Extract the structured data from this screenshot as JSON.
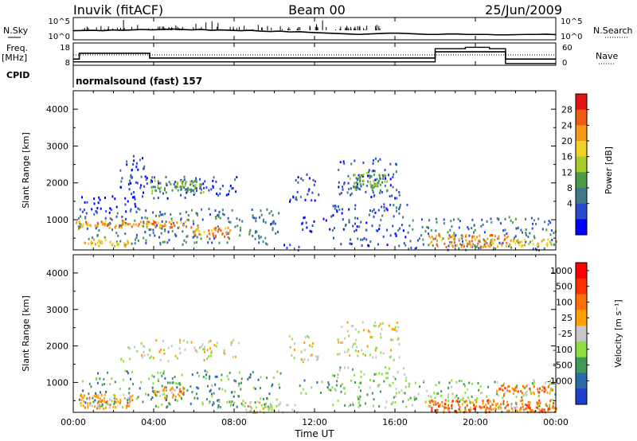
{
  "header": {
    "station": "Inuvik (fitACF)",
    "beam": "Beam 00",
    "date": "25/Jun/2009"
  },
  "noise_panel": {
    "left_label": "N.Sky",
    "left_ticks": [
      "10^5",
      "10^0"
    ],
    "right_label": "N.Search",
    "right_ticks": [
      "10^5",
      "10^0"
    ],
    "sky_level": [
      2.2,
      2.25,
      2.3,
      2.2,
      2.4,
      2.3,
      2.4,
      2.5,
      2.4,
      2.5,
      2.6,
      2.5,
      2.4,
      2.5,
      2.3,
      2.4,
      2.3,
      2.2,
      2.3,
      2.1,
      2.0,
      2.1,
      1.9,
      1.95,
      1.8,
      1.7,
      1.6,
      1.5,
      1.4,
      1.3,
      1.4,
      1.5,
      1.6,
      1.6,
      1.5,
      1.4,
      1.3,
      1.3,
      1.4,
      1.4,
      1.3,
      1.3,
      1.3,
      1.2,
      1.2,
      1.25,
      1.3,
      1.3,
      1.35,
      1.25
    ],
    "spikes": [
      {
        "t": 2.5,
        "v": 4.8
      },
      {
        "t": 3.2,
        "v": 3.6
      },
      {
        "t": 4.5,
        "v": 3.2
      },
      {
        "t": 5.1,
        "v": 3.5
      },
      {
        "t": 6.1,
        "v": 3.9
      },
      {
        "t": 6.6,
        "v": 4.2
      },
      {
        "t": 6.9,
        "v": 4.5
      },
      {
        "t": 7.2,
        "v": 4.1
      },
      {
        "t": 8.5,
        "v": 3.4
      },
      {
        "t": 9.2,
        "v": 3.6
      },
      {
        "t": 10.3,
        "v": 3.3
      },
      {
        "t": 11.2,
        "v": 3.1
      },
      {
        "t": 12.1,
        "v": 3.8
      },
      {
        "t": 12.4,
        "v": 4.7
      },
      {
        "t": 13.3,
        "v": 3.2
      },
      {
        "t": 14.6,
        "v": 3.4
      },
      {
        "t": 15.1,
        "v": 3.6
      }
    ]
  },
  "freq_panel": {
    "left_label_1": "Freq.",
    "left_label_2": "[MHz]",
    "left_ticks": [
      "18",
      "8"
    ],
    "right_label": "Nave",
    "right_ticks": [
      "60",
      "0"
    ],
    "freq_steps": [
      {
        "t0": 0,
        "t1": 0.3,
        "f": 11
      },
      {
        "t0": 0.3,
        "t1": 3.8,
        "f": 13.8
      },
      {
        "t0": 3.8,
        "t1": 18,
        "f": 11.5
      },
      {
        "t0": 18,
        "t1": 21.5,
        "f": 14.5
      },
      {
        "t0": 21.5,
        "t1": 24,
        "f": 11
      }
    ],
    "nave_steps": [
      {
        "t0": 0,
        "t1": 18,
        "n": 10
      },
      {
        "t0": 18,
        "t1": 19.5,
        "n": 48
      },
      {
        "t0": 19.5,
        "t1": 20.7,
        "n": 52
      },
      {
        "t0": 20.7,
        "t1": 21.5,
        "n": 48
      },
      {
        "t0": 21.5,
        "t1": 24,
        "n": 5
      }
    ],
    "dotted_level": 30
  },
  "cpid": {
    "label": "CPID",
    "program": "normalsound (fast) 157"
  },
  "chart_data": [
    {
      "type": "heatmap",
      "panel": "power",
      "xlabel": "",
      "ylabel": "Slant Range [km]",
      "xlim": [
        0,
        24
      ],
      "ylim": [
        180,
        4500
      ],
      "yticks": [
        "1000",
        "2000",
        "3000",
        "4000"
      ],
      "colorbar_label": "Power [dB]",
      "colorbar_ticks": [
        "28",
        "24",
        "20",
        "16",
        "12",
        "8",
        "4"
      ],
      "colorbar_colors": [
        "#0000ff",
        "#2a4ad0",
        "#3e7a8a",
        "#4a9a48",
        "#a6cc2a",
        "#f2d224",
        "#f59a18",
        "#f05a14",
        "#e41414"
      ],
      "scatter_regions": [
        {
          "t0": 0.2,
          "t1": 10.3,
          "r0": 350,
          "r1": 1350,
          "v": 2
        },
        {
          "t0": 10.3,
          "t1": 11.2,
          "r0": 200,
          "r1": 450,
          "v": 1
        },
        {
          "t0": 11.2,
          "t1": 12.8,
          "r0": 700,
          "r1": 1100,
          "v": 0
        },
        {
          "t0": 12.8,
          "t1": 16.6,
          "r0": 300,
          "r1": 1450,
          "v": 1
        },
        {
          "t0": 16.6,
          "t1": 24,
          "r0": 200,
          "r1": 1100,
          "v": 2
        },
        {
          "t0": 2.3,
          "t1": 3.8,
          "r0": 2000,
          "r1": 2800,
          "v": 1
        },
        {
          "t0": 2.3,
          "t1": 8.2,
          "r0": 1600,
          "r1": 2200,
          "v": 1
        },
        {
          "t0": 10.7,
          "t1": 12.2,
          "r0": 1500,
          "r1": 2300,
          "v": 1
        },
        {
          "t0": 13.1,
          "t1": 16.2,
          "r0": 1600,
          "r1": 2700,
          "v": 1
        },
        {
          "t0": 0.3,
          "t1": 3.2,
          "r0": 1200,
          "r1": 1700,
          "v": 0
        }
      ],
      "bands": [
        {
          "t0": 0.3,
          "t1": 2.7,
          "r0": 300,
          "r1": 500,
          "v": 5
        },
        {
          "t0": 0.0,
          "t1": 5.8,
          "r0": 800,
          "r1": 1000,
          "v": 6
        },
        {
          "t0": 5.8,
          "t1": 7.8,
          "r0": 550,
          "r1": 850,
          "v": 6
        },
        {
          "t0": 17.6,
          "t1": 21.6,
          "r0": 280,
          "r1": 620,
          "v": 6
        },
        {
          "t0": 21.6,
          "t1": 24,
          "r0": 300,
          "r1": 500,
          "v": 5
        },
        {
          "t0": 3.8,
          "t1": 6.5,
          "r0": 1750,
          "r1": 2100,
          "v": 3
        },
        {
          "t0": 13.6,
          "t1": 15.6,
          "r0": 1800,
          "r1": 2300,
          "v": 3
        }
      ]
    },
    {
      "type": "heatmap",
      "panel": "velocity",
      "xlabel": "Time UT",
      "ylabel": "Slant Range [km]",
      "xlim": [
        0,
        24
      ],
      "ylim": [
        180,
        4500
      ],
      "xticks": [
        "00:00",
        "04:00",
        "08:00",
        "12:00",
        "16:00",
        "20:00",
        "00:00"
      ],
      "yticks": [
        "1000",
        "2000",
        "3000",
        "4000"
      ],
      "colorbar_label": "Velocity [m s⁻¹]",
      "colorbar_ticks": [
        "1000",
        "500",
        "100",
        "25",
        "-25",
        "-100",
        "-500",
        "-1000"
      ],
      "colorbar_colors": [
        "#1e40c8",
        "#2a6aa8",
        "#3e9a58",
        "#8ee040",
        "#c8c8c8",
        "#ffa000",
        "#ff7000",
        "#ff3000",
        "#ff0000"
      ],
      "scatter_regions": [
        {
          "t0": 0.2,
          "t1": 10.3,
          "r0": 350,
          "r1": 1350,
          "v": 2
        },
        {
          "t0": 10.3,
          "t1": 11.2,
          "r0": 200,
          "r1": 450,
          "v": 4
        },
        {
          "t0": 11.2,
          "t1": 12.8,
          "r0": 700,
          "r1": 1100,
          "v": 2
        },
        {
          "t0": 12.8,
          "t1": 16.6,
          "r0": 300,
          "r1": 1450,
          "v": 3
        },
        {
          "t0": 16.6,
          "t1": 24,
          "r0": 200,
          "r1": 1100,
          "v": 3
        },
        {
          "t0": 2.3,
          "t1": 8.2,
          "r0": 1600,
          "r1": 2200,
          "v": 4
        },
        {
          "t0": 10.7,
          "t1": 12.2,
          "r0": 1500,
          "r1": 2300,
          "v": 4
        },
        {
          "t0": 13.1,
          "t1": 16.2,
          "r0": 1600,
          "r1": 2700,
          "v": 4
        }
      ],
      "bands": [
        {
          "t0": 0.3,
          "t1": 3.0,
          "r0": 300,
          "r1": 700,
          "v": 5
        },
        {
          "t0": 4.0,
          "t1": 5.5,
          "r0": 600,
          "r1": 900,
          "v": 5
        },
        {
          "t0": 8.5,
          "t1": 10.4,
          "r0": 200,
          "r1": 500,
          "v": 4
        },
        {
          "t0": 17.4,
          "t1": 24,
          "r0": 200,
          "r1": 550,
          "v": 6
        },
        {
          "t0": 21.0,
          "t1": 23.8,
          "r0": 700,
          "r1": 950,
          "v": 6
        }
      ]
    }
  ]
}
